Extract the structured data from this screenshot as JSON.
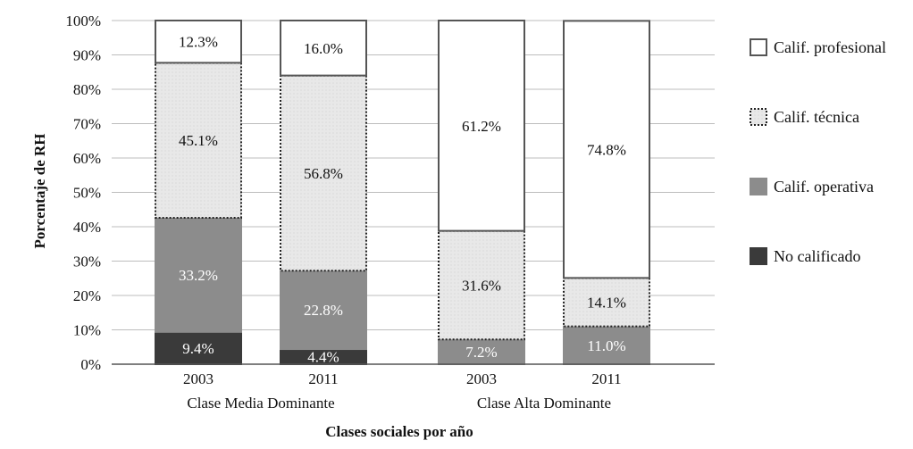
{
  "chart_data": {
    "type": "bar",
    "stacked": true,
    "ylabel": "Porcentaje de RH",
    "xlabel": "Clases sociales por año",
    "ylim": [
      0,
      100
    ],
    "yticks": [
      "0%",
      "10%",
      "20%",
      "30%",
      "40%",
      "50%",
      "60%",
      "70%",
      "80%",
      "90%",
      "100%"
    ],
    "grid": true,
    "legend_position": "right",
    "groups": [
      {
        "name": "Clase Media Dominante",
        "categories": [
          "2003",
          "2011"
        ]
      },
      {
        "name": "Clase Alta Dominante",
        "categories": [
          "2003",
          "2011"
        ]
      }
    ],
    "categories": [
      "2003",
      "2011",
      "2003",
      "2011"
    ],
    "series": [
      {
        "name": "No calificado",
        "values": [
          9.4,
          4.4,
          0,
          0
        ],
        "labels": [
          "9.4%",
          "4.4%",
          "",
          ""
        ],
        "color": "#3a3a3a"
      },
      {
        "name": "Calif. operativa",
        "values": [
          33.2,
          22.8,
          7.2,
          11.0
        ],
        "labels": [
          "33.2%",
          "22.8%",
          "7.2%",
          "11.0%"
        ],
        "color": "#8c8c8c"
      },
      {
        "name": "Calif. técnica",
        "values": [
          45.1,
          56.8,
          31.6,
          14.1
        ],
        "labels": [
          "45.1%",
          "56.8%",
          "31.6%",
          "14.1%"
        ],
        "color": "#e8e8e8"
      },
      {
        "name": "Calif. profesional",
        "values": [
          12.3,
          16.0,
          61.2,
          74.8
        ],
        "labels": [
          "12.3%",
          "16.0%",
          "61.2%",
          "74.8%"
        ],
        "color": "#ffffff"
      }
    ],
    "legend_order": [
      "Calif. profesional",
      "Calif. técnica",
      "Calif. operativa",
      "No calificado"
    ]
  }
}
